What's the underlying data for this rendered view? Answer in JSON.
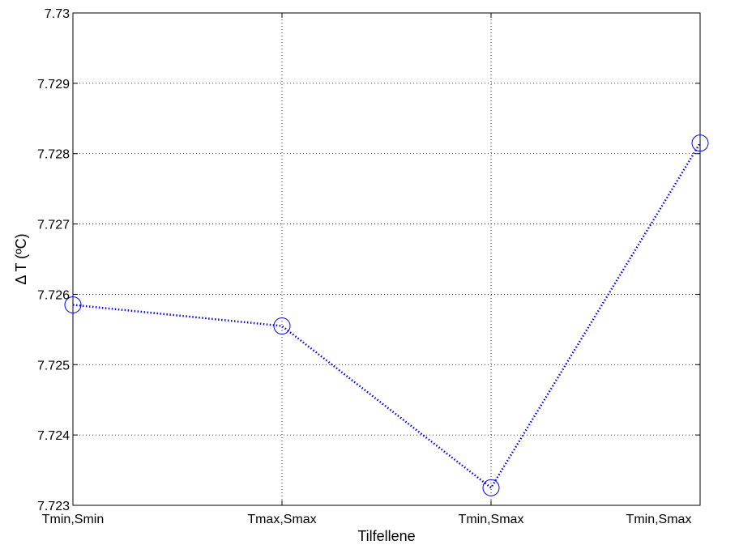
{
  "chart_data": {
    "type": "line",
    "title": "",
    "xlabel": "Tilfellene",
    "ylabel": "Δ T (ºC)",
    "categories": [
      "Tmin,Smin",
      "Tmax,Smax",
      "Tmin,Smax",
      "Tmin,Smax"
    ],
    "series": [
      {
        "values": [
          7.72585,
          7.72555,
          7.72325,
          7.72815
        ],
        "color": "#0000ff",
        "line_style": "dotted",
        "marker": "circle"
      }
    ],
    "ylim": [
      7.723,
      7.73
    ],
    "yticks": [
      7.723,
      7.724,
      7.725,
      7.726,
      7.727,
      7.728,
      7.729,
      7.73
    ],
    "ytick_labels": [
      "7.723",
      "7.724",
      "7.725",
      "7.726",
      "7.727",
      "7.728",
      "7.729",
      "7.73"
    ],
    "grid": true,
    "legend": "none"
  }
}
